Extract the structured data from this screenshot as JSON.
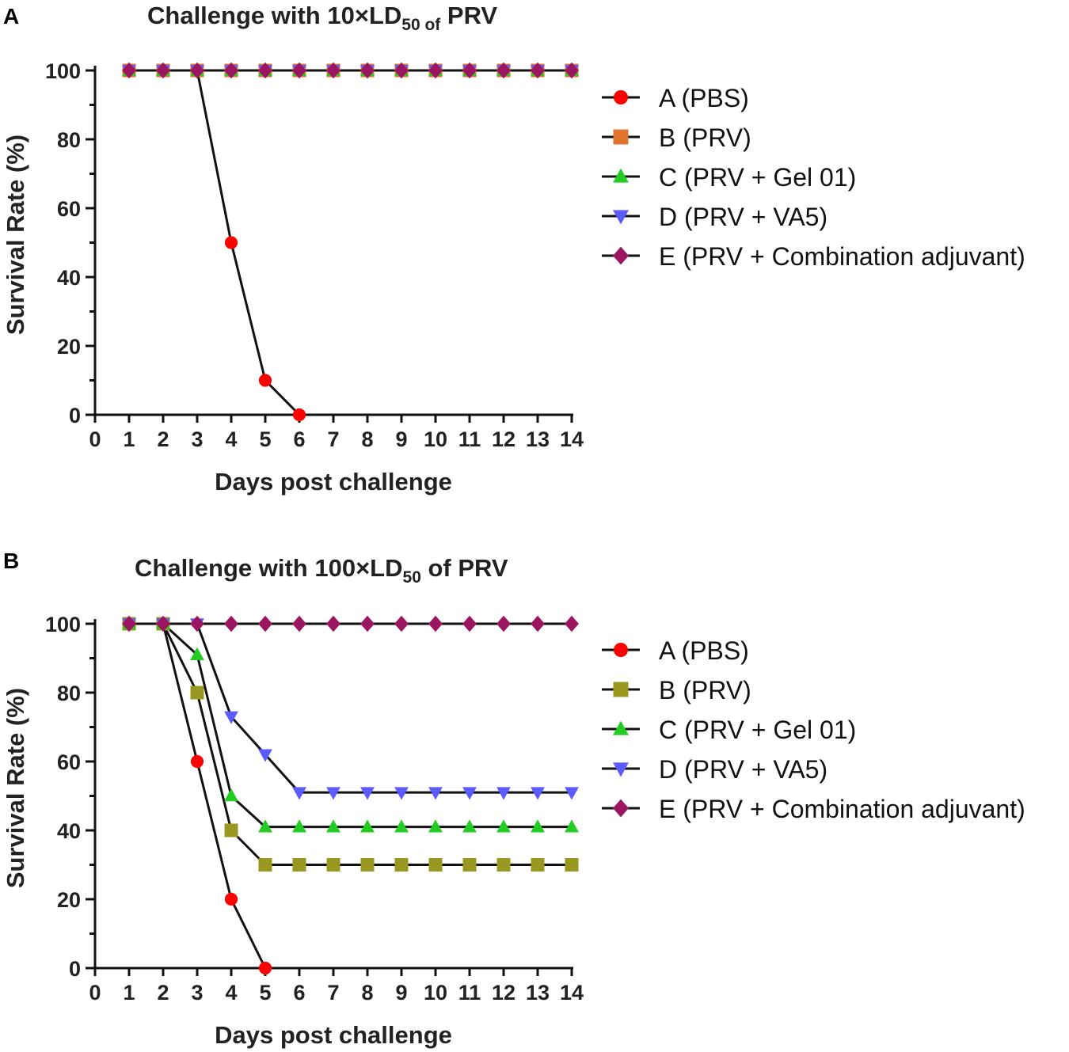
{
  "chart_data": [
    {
      "type": "line",
      "panel_label": "A",
      "title": "Challenge with 10×LD",
      "title_subscript": "50 of",
      "title_suffix": " PRV",
      "xlabel": "Days post challenge",
      "ylabel": "Survival Rate (%)",
      "xlim": [
        0,
        14
      ],
      "ylim": [
        0,
        100
      ],
      "x_ticks": [
        "0",
        "1",
        "2",
        "3",
        "4",
        "5",
        "6",
        "7",
        "8",
        "9",
        "10",
        "11",
        "12",
        "13",
        "14"
      ],
      "y_ticks": [
        "0",
        "20",
        "40",
        "60",
        "80",
        "100"
      ],
      "legend_position": "right",
      "series": [
        {
          "name": "A (PBS)",
          "marker": "circle",
          "color": "#ff0000",
          "x": [
            1,
            2,
            3,
            4,
            5,
            6
          ],
          "values": [
            100,
            100,
            100,
            50,
            10,
            0
          ]
        },
        {
          "name": "B (PRV)",
          "marker": "square",
          "color": "#e0752e",
          "x": [
            1,
            2,
            3,
            4,
            5,
            6,
            7,
            8,
            9,
            10,
            11,
            12,
            13,
            14
          ],
          "values": [
            100,
            100,
            100,
            100,
            100,
            100,
            100,
            100,
            100,
            100,
            100,
            100,
            100,
            100
          ]
        },
        {
          "name": "C (PRV + Gel 01)",
          "marker": "triangle-up",
          "color": "#22cc22",
          "x": [
            1,
            2,
            3,
            4,
            5,
            6,
            7,
            8,
            9,
            10,
            11,
            12,
            13,
            14
          ],
          "values": [
            100,
            100,
            100,
            100,
            100,
            100,
            100,
            100,
            100,
            100,
            100,
            100,
            100,
            100
          ]
        },
        {
          "name": "D (PRV + VA5)",
          "marker": "triangle-down",
          "color": "#5b5bff",
          "x": [
            1,
            2,
            3,
            4,
            5,
            6,
            7,
            8,
            9,
            10,
            11,
            12,
            13,
            14
          ],
          "values": [
            100,
            100,
            100,
            100,
            100,
            100,
            100,
            100,
            100,
            100,
            100,
            100,
            100,
            100
          ]
        },
        {
          "name": "E (PRV + Combination adjuvant)",
          "marker": "diamond",
          "color": "#9b1560",
          "x": [
            1,
            2,
            3,
            4,
            5,
            6,
            7,
            8,
            9,
            10,
            11,
            12,
            13,
            14
          ],
          "values": [
            100,
            100,
            100,
            100,
            100,
            100,
            100,
            100,
            100,
            100,
            100,
            100,
            100,
            100
          ]
        }
      ]
    },
    {
      "type": "line",
      "panel_label": "B",
      "title": "Challenge with 100×LD",
      "title_subscript": "50",
      "title_suffix": " of PRV",
      "xlabel": "Days post challenge",
      "ylabel": "Survival Rate (%)",
      "xlim": [
        0,
        14
      ],
      "ylim": [
        0,
        100
      ],
      "x_ticks": [
        "0",
        "1",
        "2",
        "3",
        "4",
        "5",
        "6",
        "7",
        "8",
        "9",
        "10",
        "11",
        "12",
        "13",
        "14"
      ],
      "y_ticks": [
        "0",
        "20",
        "40",
        "60",
        "80",
        "100"
      ],
      "legend_position": "right",
      "series": [
        {
          "name": "A (PBS)",
          "marker": "circle",
          "color": "#ff0000",
          "x": [
            1,
            2,
            3,
            4,
            5
          ],
          "values": [
            100,
            100,
            60,
            20,
            0
          ]
        },
        {
          "name": "B (PRV)",
          "marker": "square",
          "color": "#999922",
          "x": [
            1,
            2,
            3,
            4,
            5,
            6,
            7,
            8,
            9,
            10,
            11,
            12,
            13,
            14
          ],
          "values": [
            100,
            100,
            80,
            40,
            30,
            30,
            30,
            30,
            30,
            30,
            30,
            30,
            30,
            30
          ]
        },
        {
          "name": "C (PRV + Gel 01)",
          "marker": "triangle-up",
          "color": "#22cc22",
          "x": [
            1,
            2,
            3,
            4,
            5,
            6,
            7,
            8,
            9,
            10,
            11,
            12,
            13,
            14
          ],
          "values": [
            100,
            100,
            91,
            50,
            41,
            41,
            41,
            41,
            41,
            41,
            41,
            41,
            41,
            41
          ]
        },
        {
          "name": "D (PRV + VA5)",
          "marker": "triangle-down",
          "color": "#5b5bff",
          "x": [
            1,
            2,
            3,
            4,
            5,
            6,
            7,
            8,
            9,
            10,
            11,
            12,
            13,
            14
          ],
          "values": [
            100,
            100,
            100,
            73,
            62,
            51,
            51,
            51,
            51,
            51,
            51,
            51,
            51,
            51
          ]
        },
        {
          "name": "E (PRV + Combination adjuvant)",
          "marker": "diamond",
          "color": "#9b1560",
          "x": [
            1,
            2,
            3,
            4,
            5,
            6,
            7,
            8,
            9,
            10,
            11,
            12,
            13,
            14
          ],
          "values": [
            100,
            100,
            100,
            100,
            100,
            100,
            100,
            100,
            100,
            100,
            100,
            100,
            100,
            100
          ]
        }
      ]
    }
  ]
}
